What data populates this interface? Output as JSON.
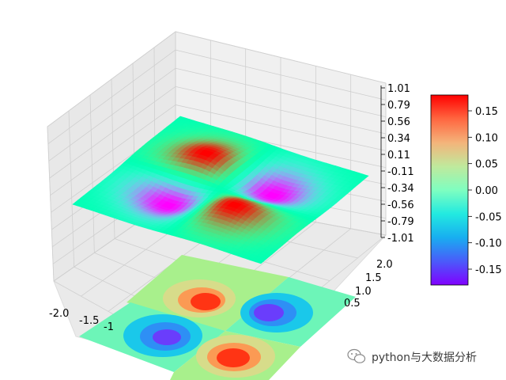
{
  "chart_data": {
    "type": "surface3d",
    "title": "",
    "xlabel": "",
    "ylabel": "",
    "zlabel": "",
    "function": "z = x*y*exp(-(x^2+y^2))",
    "x_range": [
      -2,
      2
    ],
    "y_range": [
      -2,
      2
    ],
    "z_range": [
      -1.01,
      1.01
    ],
    "colormap": "rainbow",
    "grid": true,
    "x_tick_labels": [
      "-2.0",
      "-1.5",
      "-1"
    ],
    "y_tick_labels": [
      "2.0",
      "1.5",
      "1.0",
      "0.5"
    ],
    "z_tick_labels": [
      "1.01",
      "0.79",
      "0.56",
      "0.34",
      "0.11",
      "-0.11",
      "-0.34",
      "-0.56",
      "-0.79",
      "-1.01"
    ],
    "colorbar": {
      "range": [
        -0.18,
        0.18
      ],
      "tick_labels": [
        "0.15",
        "0.10",
        "0.05",
        "0.00",
        "-0.05",
        "-0.10",
        "-0.15"
      ],
      "tick_values": [
        0.15,
        0.1,
        0.05,
        0.0,
        -0.05,
        -0.1,
        -0.15
      ],
      "placement": "right"
    },
    "contour_projection": {
      "offset": "bottom",
      "levels": [
        -0.18,
        -0.135,
        -0.09,
        -0.045,
        0,
        0.045,
        0.09,
        0.135,
        0.18
      ]
    }
  },
  "watermark": {
    "icon": "wechat-icon",
    "text": "python与大数据分析"
  }
}
